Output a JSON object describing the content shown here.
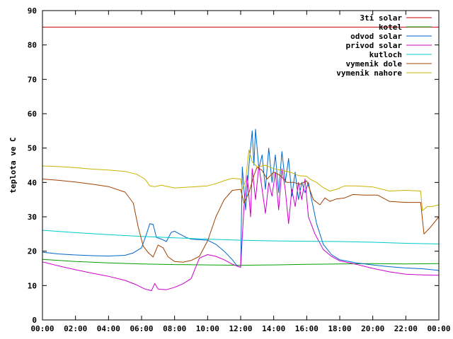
{
  "chart_data": {
    "type": "line",
    "ylabel": "teplota ve C",
    "xlabel": "",
    "title": "",
    "xlim": [
      0,
      24
    ],
    "ylim": [
      0,
      90
    ],
    "x_ticks": [
      {
        "v": 0,
        "label": "00:00"
      },
      {
        "v": 2,
        "label": "02:00"
      },
      {
        "v": 4,
        "label": "04:00"
      },
      {
        "v": 6,
        "label": "06:00"
      },
      {
        "v": 8,
        "label": "08:00"
      },
      {
        "v": 10,
        "label": "10:00"
      },
      {
        "v": 12,
        "label": "12:00"
      },
      {
        "v": 14,
        "label": "14:00"
      },
      {
        "v": 16,
        "label": "16:00"
      },
      {
        "v": 18,
        "label": "18:00"
      },
      {
        "v": 20,
        "label": "20:00"
      },
      {
        "v": 22,
        "label": "22:00"
      },
      {
        "v": 24,
        "label": "00:00"
      }
    ],
    "y_ticks": [
      {
        "v": 0,
        "label": "0"
      },
      {
        "v": 10,
        "label": "10"
      },
      {
        "v": 20,
        "label": "20"
      },
      {
        "v": 30,
        "label": "30"
      },
      {
        "v": 40,
        "label": "40"
      },
      {
        "v": 50,
        "label": "50"
      },
      {
        "v": 60,
        "label": "60"
      },
      {
        "v": 70,
        "label": "70"
      },
      {
        "v": 80,
        "label": "80"
      },
      {
        "v": 90,
        "label": "90"
      }
    ],
    "grid": false,
    "legend_position": "top-right",
    "series": [
      {
        "name": "3ti solar",
        "color": "#cc0000",
        "points": [
          [
            0,
            85.2
          ],
          [
            24,
            85.2
          ]
        ]
      },
      {
        "name": "kotel",
        "color": "#00a000",
        "points": [
          [
            0,
            17.6
          ],
          [
            2,
            17.0
          ],
          [
            4,
            16.6
          ],
          [
            6,
            16.3
          ],
          [
            8,
            16.1
          ],
          [
            10,
            16.0
          ],
          [
            12,
            15.9
          ],
          [
            14,
            16.0
          ],
          [
            16,
            16.2
          ],
          [
            18,
            16.3
          ],
          [
            20,
            16.4
          ],
          [
            22,
            16.3
          ],
          [
            24,
            16.4
          ]
        ]
      },
      {
        "name": "odvod solar",
        "color": "#0066cc",
        "points": [
          [
            0,
            19.7
          ],
          [
            1,
            19.2
          ],
          [
            2,
            18.9
          ],
          [
            3,
            18.7
          ],
          [
            4,
            18.6
          ],
          [
            5,
            18.8
          ],
          [
            5.5,
            19.5
          ],
          [
            6.0,
            21
          ],
          [
            6.3,
            25
          ],
          [
            6.5,
            28
          ],
          [
            6.7,
            27.8
          ],
          [
            6.9,
            24
          ],
          [
            7.2,
            23.5
          ],
          [
            7.5,
            22.8
          ],
          [
            7.8,
            25.5
          ],
          [
            8.0,
            25.8
          ],
          [
            8.3,
            25
          ],
          [
            8.7,
            24
          ],
          [
            9.0,
            23.5
          ],
          [
            10,
            23.2
          ],
          [
            10.5,
            22
          ],
          [
            11,
            20
          ],
          [
            11.5,
            17.5
          ],
          [
            11.8,
            15.6
          ],
          [
            12.0,
            15.4
          ],
          [
            12.1,
            44.5
          ],
          [
            12.3,
            32
          ],
          [
            12.5,
            45
          ],
          [
            12.7,
            55
          ],
          [
            12.8,
            45
          ],
          [
            12.9,
            55.5
          ],
          [
            13.1,
            44
          ],
          [
            13.3,
            48
          ],
          [
            13.5,
            38
          ],
          [
            13.7,
            50
          ],
          [
            13.9,
            40
          ],
          [
            14.1,
            48
          ],
          [
            14.3,
            37
          ],
          [
            14.5,
            49
          ],
          [
            14.7,
            40
          ],
          [
            14.9,
            47
          ],
          [
            15.1,
            36
          ],
          [
            15.3,
            43
          ],
          [
            15.5,
            35
          ],
          [
            15.7,
            40
          ],
          [
            15.9,
            37
          ],
          [
            16.1,
            40
          ],
          [
            16.3,
            35
          ],
          [
            16.6,
            28
          ],
          [
            17,
            22
          ],
          [
            17.5,
            19
          ],
          [
            18,
            17.5
          ],
          [
            19,
            16.6
          ],
          [
            20,
            16.0
          ],
          [
            21,
            15.5
          ],
          [
            22,
            15.1
          ],
          [
            23,
            14.9
          ],
          [
            24,
            14.4
          ]
        ]
      },
      {
        "name": "privod solar",
        "color": "#cc00cc",
        "points": [
          [
            0,
            16.9
          ],
          [
            1,
            15.7
          ],
          [
            2,
            14.6
          ],
          [
            3,
            13.6
          ],
          [
            4,
            12.7
          ],
          [
            5,
            11.5
          ],
          [
            5.7,
            10.2
          ],
          [
            6.2,
            9.0
          ],
          [
            6.6,
            8.5
          ],
          [
            6.8,
            10.6
          ],
          [
            7.0,
            9.0
          ],
          [
            7.5,
            8.8
          ],
          [
            8.0,
            9.5
          ],
          [
            8.5,
            10.5
          ],
          [
            9.0,
            12
          ],
          [
            9.5,
            18
          ],
          [
            10,
            19
          ],
          [
            10.5,
            18.5
          ],
          [
            11.0,
            17.5
          ],
          [
            11.5,
            16.2
          ],
          [
            12.0,
            15.3
          ],
          [
            12.2,
            33
          ],
          [
            12.4,
            42
          ],
          [
            12.6,
            30
          ],
          [
            12.7,
            44
          ],
          [
            12.9,
            35
          ],
          [
            13.1,
            45
          ],
          [
            13.3,
            38
          ],
          [
            13.5,
            31
          ],
          [
            13.7,
            40
          ],
          [
            13.9,
            36
          ],
          [
            14.1,
            43
          ],
          [
            14.3,
            32
          ],
          [
            14.5,
            44
          ],
          [
            14.7,
            38
          ],
          [
            14.9,
            28
          ],
          [
            15.1,
            38
          ],
          [
            15.3,
            33
          ],
          [
            15.5,
            40
          ],
          [
            15.7,
            35
          ],
          [
            15.9,
            41
          ],
          [
            16.1,
            30
          ],
          [
            16.5,
            25
          ],
          [
            17,
            20.5
          ],
          [
            17.5,
            18.5
          ],
          [
            18,
            17.2
          ],
          [
            19,
            16.2
          ],
          [
            20,
            15.0
          ],
          [
            21,
            14.0
          ],
          [
            22,
            13.3
          ],
          [
            23,
            13.1
          ],
          [
            24,
            13.0
          ]
        ]
      },
      {
        "name": "kutloch",
        "color": "#00cccc",
        "points": [
          [
            0,
            26.1
          ],
          [
            2,
            25.4
          ],
          [
            4,
            24.8
          ],
          [
            6,
            24.3
          ],
          [
            8,
            23.9
          ],
          [
            10,
            23.5
          ],
          [
            12,
            23.2
          ],
          [
            14,
            23.0
          ],
          [
            16,
            22.9
          ],
          [
            18,
            22.8
          ],
          [
            20,
            22.6
          ],
          [
            22,
            22.3
          ],
          [
            24,
            22.1
          ]
        ]
      },
      {
        "name": "vymenik dole",
        "color": "#a04000",
        "points": [
          [
            0,
            41.0
          ],
          [
            1,
            40.6
          ],
          [
            2,
            40.1
          ],
          [
            3,
            39.5
          ],
          [
            4,
            38.8
          ],
          [
            5,
            37.2
          ],
          [
            5.5,
            34
          ],
          [
            5.8,
            27
          ],
          [
            6.1,
            21.5
          ],
          [
            6.4,
            19.6
          ],
          [
            6.7,
            18.3
          ],
          [
            7.0,
            21.8
          ],
          [
            7.3,
            21
          ],
          [
            7.6,
            18.4
          ],
          [
            8.0,
            17
          ],
          [
            8.5,
            16.8
          ],
          [
            9.0,
            17.3
          ],
          [
            9.5,
            18.5
          ],
          [
            10,
            23
          ],
          [
            10.5,
            30
          ],
          [
            11,
            35
          ],
          [
            11.5,
            37.7
          ],
          [
            12.0,
            38
          ],
          [
            12.2,
            34
          ],
          [
            12.5,
            37
          ],
          [
            12.8,
            42
          ],
          [
            13.0,
            44.5
          ],
          [
            13.3,
            43.5
          ],
          [
            13.6,
            41
          ],
          [
            14,
            43
          ],
          [
            14.4,
            42
          ],
          [
            14.8,
            40
          ],
          [
            15.2,
            40
          ],
          [
            15.6,
            39.5
          ],
          [
            16,
            40.5
          ],
          [
            16.4,
            35
          ],
          [
            16.8,
            33.5
          ],
          [
            17.1,
            35.5
          ],
          [
            17.4,
            34.5
          ],
          [
            17.8,
            35.2
          ],
          [
            18.3,
            35.5
          ],
          [
            18.8,
            36.5
          ],
          [
            19.5,
            36.3
          ],
          [
            20.3,
            36.3
          ],
          [
            21,
            34.5
          ],
          [
            22,
            34.2
          ],
          [
            22.9,
            34.2
          ],
          [
            23.1,
            25
          ],
          [
            23.5,
            27
          ],
          [
            24,
            30
          ]
        ]
      },
      {
        "name": "vymenik nahore",
        "color": "#c8b400",
        "points": [
          [
            0,
            44.8
          ],
          [
            1,
            44.6
          ],
          [
            2,
            44.3
          ],
          [
            3,
            43.9
          ],
          [
            4,
            43.6
          ],
          [
            5,
            43.2
          ],
          [
            5.7,
            42.4
          ],
          [
            6.2,
            41
          ],
          [
            6.5,
            39
          ],
          [
            6.8,
            38.8
          ],
          [
            7.2,
            39.2
          ],
          [
            7.6,
            38.8
          ],
          [
            8,
            38.4
          ],
          [
            9,
            38.7
          ],
          [
            10,
            39.0
          ],
          [
            10.6,
            39.8
          ],
          [
            11,
            40.5
          ],
          [
            11.5,
            41.2
          ],
          [
            12,
            41.0
          ],
          [
            12.1,
            38
          ],
          [
            12.3,
            40.5
          ],
          [
            12.5,
            49.5
          ],
          [
            12.7,
            46
          ],
          [
            13,
            44.5
          ],
          [
            13.5,
            45
          ],
          [
            14,
            44
          ],
          [
            14.5,
            43.5
          ],
          [
            15,
            43
          ],
          [
            15.5,
            42
          ],
          [
            16,
            41.8
          ],
          [
            16.2,
            41
          ],
          [
            16.6,
            40
          ],
          [
            17,
            38.5
          ],
          [
            17.4,
            37.5
          ],
          [
            17.8,
            38
          ],
          [
            18.3,
            39
          ],
          [
            19,
            39
          ],
          [
            20,
            38.7
          ],
          [
            21,
            37.5
          ],
          [
            22,
            37.7
          ],
          [
            22.9,
            37.5
          ],
          [
            23.0,
            31.8
          ],
          [
            23.3,
            33
          ],
          [
            23.6,
            33
          ],
          [
            24,
            33.5
          ]
        ]
      }
    ]
  }
}
